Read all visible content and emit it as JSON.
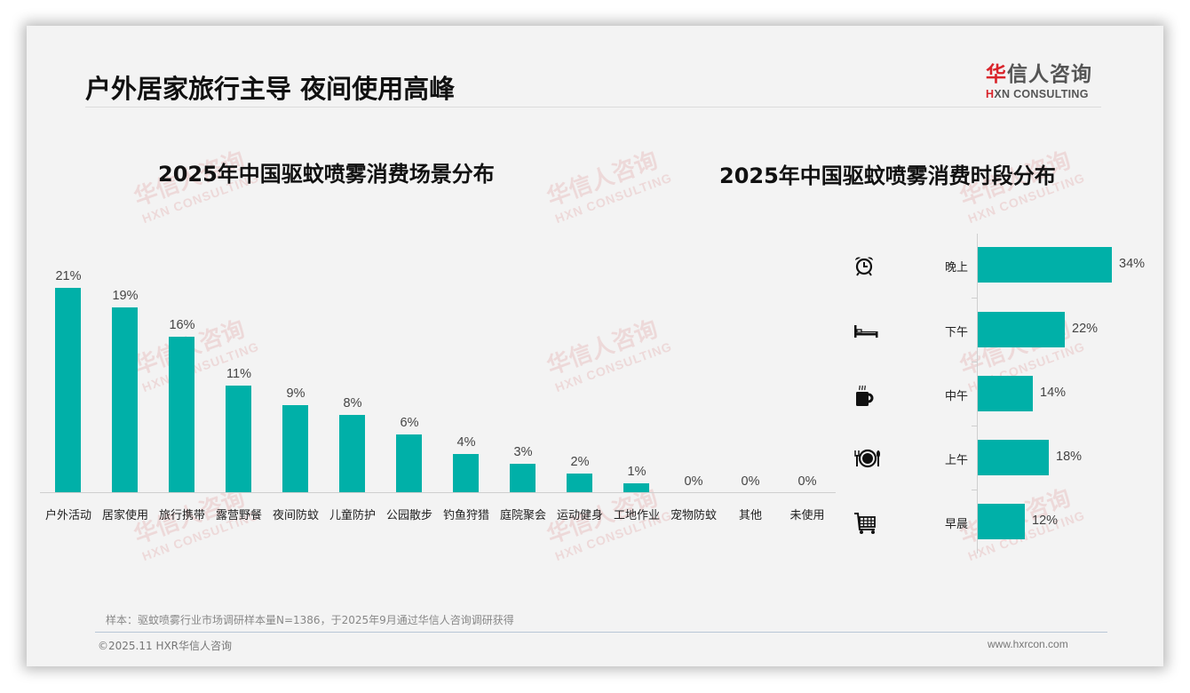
{
  "header": {
    "title": "户外居家旅行主导 夜间使用高峰",
    "logo_cn_first": "华",
    "logo_cn_rest": "信人咨询",
    "logo_en_first": "H",
    "logo_en_rest": "XN CONSULTING"
  },
  "watermark": {
    "cn": "华信人咨询",
    "en": "HXN CONSULTING"
  },
  "colors": {
    "bar": "#00b0a8",
    "brand_red": "#d9242b"
  },
  "chart_data": [
    {
      "type": "bar",
      "title": "2025年中国驱蚊喷雾消费场景分布",
      "categories": [
        "户外活动",
        "居家使用",
        "旅行携带",
        "露营野餐",
        "夜间防蚊",
        "儿童防护",
        "公园散步",
        "钓鱼狩猎",
        "庭院聚会",
        "运动健身",
        "工地作业",
        "宠物防蚊",
        "其他",
        "未使用"
      ],
      "values": [
        21,
        19,
        16,
        11,
        9,
        8,
        6,
        4,
        3,
        2,
        1,
        0,
        0,
        0
      ],
      "value_labels": [
        "21%",
        "19%",
        "16%",
        "11%",
        "9%",
        "8%",
        "6%",
        "4%",
        "3%",
        "2%",
        "1%",
        "0%",
        "0%",
        "0%"
      ],
      "xlabel": "",
      "ylabel": "",
      "unit": "%",
      "grid": false,
      "legend": "none"
    },
    {
      "type": "bar",
      "orientation": "horizontal",
      "title": "2025年中国驱蚊喷雾消费时段分布",
      "categories": [
        "晚上",
        "下午",
        "中午",
        "上午",
        "早晨"
      ],
      "values": [
        34,
        22,
        14,
        18,
        12
      ],
      "value_labels": [
        "34%",
        "22%",
        "14%",
        "18%",
        "12%"
      ],
      "icons": [
        "alarm-clock-icon",
        "bed-icon",
        "coffee-mug-icon",
        "plate-cutlery-icon",
        "shopping-cart-icon"
      ],
      "unit": "%",
      "grid": false,
      "legend": "none"
    }
  ],
  "footer": {
    "note": "样本：驱蚊喷雾行业市场调研样本量N=1386，于2025年9月通过华信人咨询调研获得",
    "copyright": "©2025.11 HXR华信人咨询",
    "website": "www.hxrcon.com"
  }
}
